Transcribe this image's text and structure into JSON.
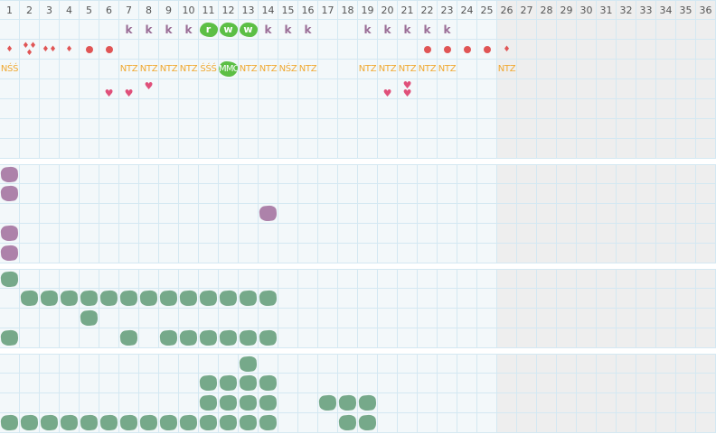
{
  "columns": [
    "1",
    "2",
    "3",
    "4",
    "5",
    "6",
    "7",
    "8",
    "9",
    "10",
    "11",
    "12",
    "13",
    "14",
    "15",
    "16",
    "17",
    "18",
    "19",
    "20",
    "21",
    "22",
    "23",
    "24",
    "25",
    "26",
    "27",
    "28",
    "29",
    "30",
    "31",
    "32",
    "33",
    "34",
    "35",
    "36"
  ],
  "future_from_column": 26,
  "colors": {
    "cell": "#f3f8fa",
    "grid": "#d4e8f2",
    "future": "#eeeeee",
    "k": "#9a6d96",
    "green_badge": "#5cbf45",
    "orange_text": "#f0a830",
    "red": "#e05555",
    "heart": "#e0507a",
    "purple_block": "#ad82aa",
    "green_block": "#76a98a"
  },
  "sections": [
    {
      "rows": [
        [
          {
            "c": 7,
            "t": "k",
            "v": "k"
          },
          {
            "c": 8,
            "t": "k",
            "v": "k"
          },
          {
            "c": 9,
            "t": "k",
            "v": "k"
          },
          {
            "c": 10,
            "t": "k",
            "v": "k"
          },
          {
            "c": 11,
            "t": "badge",
            "v": "r"
          },
          {
            "c": 12,
            "t": "badge",
            "v": "w"
          },
          {
            "c": 13,
            "t": "badge",
            "v": "w"
          },
          {
            "c": 14,
            "t": "k",
            "v": "k"
          },
          {
            "c": 15,
            "t": "k",
            "v": "k"
          },
          {
            "c": 16,
            "t": "k",
            "v": "k"
          },
          {
            "c": 19,
            "t": "k",
            "v": "k"
          },
          {
            "c": 20,
            "t": "k",
            "v": "k"
          },
          {
            "c": 21,
            "t": "k",
            "v": "k"
          },
          {
            "c": 22,
            "t": "k",
            "v": "k"
          },
          {
            "c": 23,
            "t": "k",
            "v": "k"
          }
        ],
        [
          {
            "c": 1,
            "t": "drop",
            "n": 1
          },
          {
            "c": 2,
            "t": "drop",
            "n": 3
          },
          {
            "c": 3,
            "t": "drop",
            "n": 2
          },
          {
            "c": 4,
            "t": "drop",
            "n": 1
          },
          {
            "c": 5,
            "t": "dot"
          },
          {
            "c": 6,
            "t": "dot"
          },
          {
            "c": 22,
            "t": "dot"
          },
          {
            "c": 23,
            "t": "dot"
          },
          {
            "c": 24,
            "t": "dot"
          },
          {
            "c": 25,
            "t": "dot"
          },
          {
            "c": 26,
            "t": "drop",
            "n": 1
          }
        ],
        [
          {
            "c": 1,
            "t": "text",
            "v": "NŚŚ"
          },
          {
            "c": 7,
            "t": "text",
            "v": "NTZ"
          },
          {
            "c": 8,
            "t": "text",
            "v": "NTZ"
          },
          {
            "c": 9,
            "t": "text",
            "v": "NTZ"
          },
          {
            "c": 10,
            "t": "text",
            "v": "NTZ"
          },
          {
            "c": 11,
            "t": "text",
            "v": "ŚŚŚ"
          },
          {
            "c": 12,
            "t": "gtext",
            "v": "MMC"
          },
          {
            "c": 13,
            "t": "text",
            "v": "NTZ"
          },
          {
            "c": 14,
            "t": "text",
            "v": "NTZ"
          },
          {
            "c": 15,
            "t": "text",
            "v": "NŚZ"
          },
          {
            "c": 16,
            "t": "text",
            "v": "NTZ"
          },
          {
            "c": 19,
            "t": "text",
            "v": "NTZ"
          },
          {
            "c": 20,
            "t": "text",
            "v": "NTZ"
          },
          {
            "c": 21,
            "t": "text",
            "v": "NTZ"
          },
          {
            "c": 22,
            "t": "text",
            "v": "NTZ"
          },
          {
            "c": 23,
            "t": "text",
            "v": "NTZ"
          },
          {
            "c": 26,
            "t": "text",
            "v": "NTZ"
          }
        ],
        [
          {
            "c": 6,
            "t": "heart",
            "pos": "low",
            "n": 1
          },
          {
            "c": 7,
            "t": "heart",
            "pos": "low",
            "n": 1
          },
          {
            "c": 8,
            "t": "heart",
            "pos": "high",
            "n": 1
          },
          {
            "c": 20,
            "t": "heart",
            "pos": "low",
            "n": 1
          },
          {
            "c": 21,
            "t": "heart",
            "pos": "mid",
            "n": 2
          }
        ],
        [],
        [],
        []
      ]
    },
    {
      "rows": [
        [
          {
            "c": 1,
            "t": "purple"
          }
        ],
        [
          {
            "c": 1,
            "t": "purple"
          }
        ],
        [
          {
            "c": 14,
            "t": "purple"
          }
        ],
        [
          {
            "c": 1,
            "t": "purple"
          }
        ],
        [
          {
            "c": 1,
            "t": "purple"
          }
        ]
      ]
    },
    {
      "rows": [
        [
          {
            "c": 1,
            "t": "green"
          }
        ],
        [
          {
            "c": 2,
            "t": "green"
          },
          {
            "c": 3,
            "t": "green"
          },
          {
            "c": 4,
            "t": "green"
          },
          {
            "c": 5,
            "t": "green"
          },
          {
            "c": 6,
            "t": "green"
          },
          {
            "c": 7,
            "t": "green"
          },
          {
            "c": 8,
            "t": "green"
          },
          {
            "c": 9,
            "t": "green"
          },
          {
            "c": 10,
            "t": "green"
          },
          {
            "c": 11,
            "t": "green"
          },
          {
            "c": 12,
            "t": "green"
          },
          {
            "c": 13,
            "t": "green"
          },
          {
            "c": 14,
            "t": "green"
          }
        ],
        [
          {
            "c": 5,
            "t": "green"
          }
        ],
        [
          {
            "c": 1,
            "t": "green"
          },
          {
            "c": 7,
            "t": "green"
          },
          {
            "c": 9,
            "t": "green"
          },
          {
            "c": 10,
            "t": "green"
          },
          {
            "c": 11,
            "t": "green"
          },
          {
            "c": 12,
            "t": "green"
          },
          {
            "c": 13,
            "t": "green"
          },
          {
            "c": 14,
            "t": "green"
          }
        ]
      ]
    },
    {
      "rows": [
        [
          {
            "c": 13,
            "t": "green"
          }
        ],
        [
          {
            "c": 11,
            "t": "green"
          },
          {
            "c": 12,
            "t": "green"
          },
          {
            "c": 13,
            "t": "green"
          },
          {
            "c": 14,
            "t": "green"
          }
        ],
        [
          {
            "c": 11,
            "t": "green"
          },
          {
            "c": 12,
            "t": "green"
          },
          {
            "c": 13,
            "t": "green"
          },
          {
            "c": 14,
            "t": "green"
          },
          {
            "c": 17,
            "t": "green"
          },
          {
            "c": 18,
            "t": "green"
          },
          {
            "c": 19,
            "t": "green"
          }
        ],
        [
          {
            "c": 1,
            "t": "green"
          },
          {
            "c": 2,
            "t": "green"
          },
          {
            "c": 3,
            "t": "green"
          },
          {
            "c": 4,
            "t": "green"
          },
          {
            "c": 5,
            "t": "green"
          },
          {
            "c": 6,
            "t": "green"
          },
          {
            "c": 7,
            "t": "green"
          },
          {
            "c": 8,
            "t": "green"
          },
          {
            "c": 9,
            "t": "green"
          },
          {
            "c": 10,
            "t": "green"
          },
          {
            "c": 11,
            "t": "green"
          },
          {
            "c": 12,
            "t": "green"
          },
          {
            "c": 13,
            "t": "green"
          },
          {
            "c": 14,
            "t": "green"
          },
          {
            "c": 18,
            "t": "green"
          },
          {
            "c": 19,
            "t": "green"
          }
        ]
      ]
    }
  ]
}
